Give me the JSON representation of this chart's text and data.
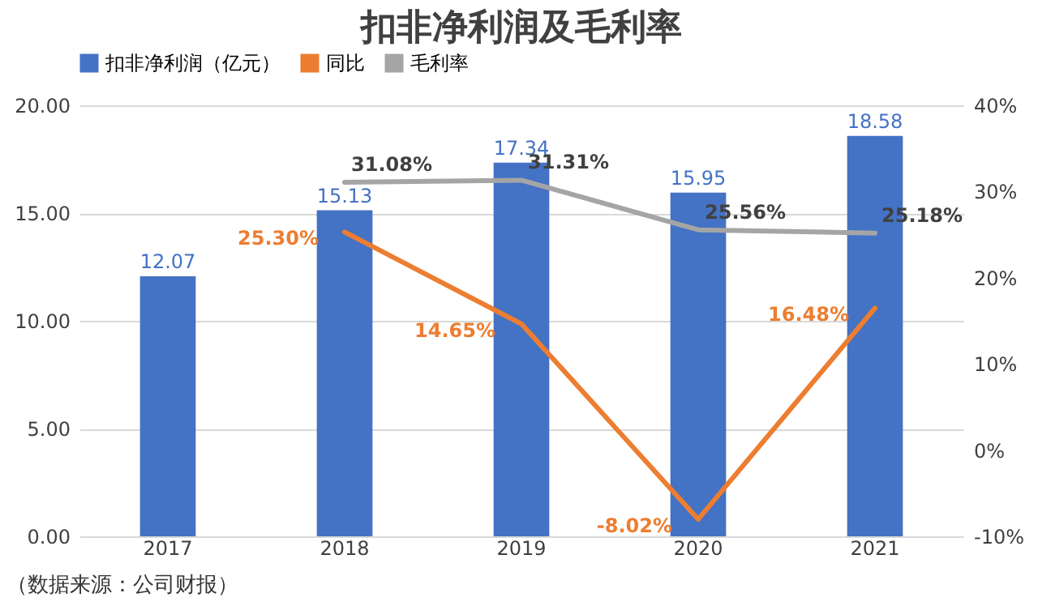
{
  "chart_data": {
    "type": "bar",
    "title": "扣非净利润及毛利率",
    "categories": [
      "2017",
      "2018",
      "2019",
      "2020",
      "2021"
    ],
    "series": [
      {
        "name": "扣非净利润（亿元）",
        "color": "#4472c4",
        "values": [
          12.07,
          15.13,
          17.34,
          15.95,
          18.58
        ],
        "value_labels": [
          "12.07",
          "15.13",
          "17.34",
          "15.95",
          "18.58"
        ]
      },
      {
        "name": "同比",
        "type": "line",
        "axis": "y2",
        "color": "#ed7d31",
        "values": [
          null,
          25.3,
          14.65,
          -8.02,
          16.48
        ],
        "value_labels": [
          null,
          "25.30%",
          "14.65%",
          "-8.02%",
          "16.48%"
        ]
      },
      {
        "name": "毛利率",
        "type": "line",
        "axis": "y2",
        "color": "#a5a5a5",
        "values": [
          null,
          31.08,
          31.31,
          25.56,
          25.18
        ],
        "value_labels": [
          null,
          "31.08%",
          "31.31%",
          "25.56%",
          "25.18%"
        ]
      }
    ],
    "ylim": [
      0,
      20
    ],
    "yticks": [
      {
        "value": 0,
        "label": "0.00"
      },
      {
        "value": 5,
        "label": "5.00"
      },
      {
        "value": 10,
        "label": "10.00"
      },
      {
        "value": 15,
        "label": "15.00"
      },
      {
        "value": 20,
        "label": "20.00"
      }
    ],
    "y2lim": [
      -10,
      40
    ],
    "y2ticks": [
      {
        "value": -10,
        "label": "-10%"
      },
      {
        "value": 0,
        "label": "0%"
      },
      {
        "value": 10,
        "label": "10%"
      },
      {
        "value": 20,
        "label": "20%"
      },
      {
        "value": 30,
        "label": "30%"
      },
      {
        "value": 40,
        "label": "40%"
      }
    ],
    "grid": "y",
    "legend": "top",
    "marker": "none",
    "line_style": "solid",
    "annotations": [
      "（数据来源：公司财报）"
    ]
  }
}
